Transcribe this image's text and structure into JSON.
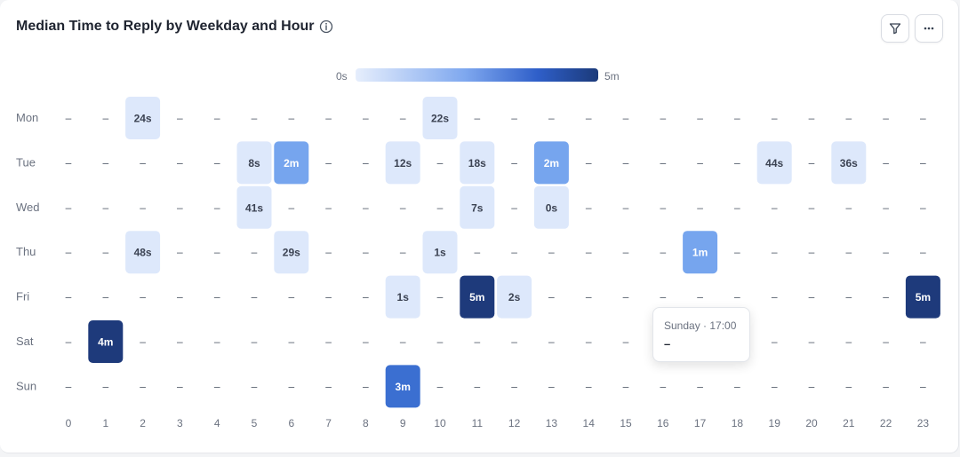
{
  "header": {
    "title": "Median Time to Reply by Weekday and Hour"
  },
  "toolbar": {
    "filter_icon": "filter-icon",
    "more_icon": "more-horizontal-icon"
  },
  "legend": {
    "min_label": "0s",
    "max_label": "5m"
  },
  "colors": {
    "light": "#dde8fb",
    "mid": "#76a5ee",
    "strong": "#3b6fd1",
    "dark": "#1e3a7b"
  },
  "tooltip": {
    "title": "Sunday · 17:00",
    "value": "–"
  },
  "chart_data": {
    "type": "heatmap",
    "title": "Median Time to Reply by Weekday and Hour",
    "x": [
      "0",
      "1",
      "2",
      "3",
      "4",
      "5",
      "6",
      "7",
      "8",
      "9",
      "10",
      "11",
      "12",
      "13",
      "14",
      "15",
      "16",
      "17",
      "18",
      "19",
      "20",
      "21",
      "22",
      "23"
    ],
    "y": [
      "Mon",
      "Tue",
      "Wed",
      "Thu",
      "Fri",
      "Sat",
      "Sun"
    ],
    "empty_label": "–",
    "cells": [
      {
        "row": 0,
        "col": 2,
        "label": "24s",
        "seconds": 24
      },
      {
        "row": 0,
        "col": 10,
        "label": "22s",
        "seconds": 22
      },
      {
        "row": 1,
        "col": 5,
        "label": "8s",
        "seconds": 8
      },
      {
        "row": 1,
        "col": 6,
        "label": "2m",
        "seconds": 120
      },
      {
        "row": 1,
        "col": 9,
        "label": "12s",
        "seconds": 12
      },
      {
        "row": 1,
        "col": 11,
        "label": "18s",
        "seconds": 18
      },
      {
        "row": 1,
        "col": 13,
        "label": "2m",
        "seconds": 120
      },
      {
        "row": 1,
        "col": 19,
        "label": "44s",
        "seconds": 44
      },
      {
        "row": 1,
        "col": 21,
        "label": "36s",
        "seconds": 36
      },
      {
        "row": 2,
        "col": 5,
        "label": "41s",
        "seconds": 41
      },
      {
        "row": 2,
        "col": 11,
        "label": "7s",
        "seconds": 7
      },
      {
        "row": 2,
        "col": 13,
        "label": "0s",
        "seconds": 0
      },
      {
        "row": 3,
        "col": 2,
        "label": "48s",
        "seconds": 48
      },
      {
        "row": 3,
        "col": 6,
        "label": "29s",
        "seconds": 29
      },
      {
        "row": 3,
        "col": 10,
        "label": "1s",
        "seconds": 1
      },
      {
        "row": 3,
        "col": 17,
        "label": "1m",
        "seconds": 60
      },
      {
        "row": 4,
        "col": 9,
        "label": "1s",
        "seconds": 1
      },
      {
        "row": 4,
        "col": 11,
        "label": "5m",
        "seconds": 300
      },
      {
        "row": 4,
        "col": 12,
        "label": "2s",
        "seconds": 2
      },
      {
        "row": 4,
        "col": 23,
        "label": "5m",
        "seconds": 300
      },
      {
        "row": 5,
        "col": 1,
        "label": "4m",
        "seconds": 240
      },
      {
        "row": 6,
        "col": 9,
        "label": "3m",
        "seconds": 180
      }
    ],
    "color_scale": {
      "min": "0s",
      "max": "5m"
    }
  }
}
